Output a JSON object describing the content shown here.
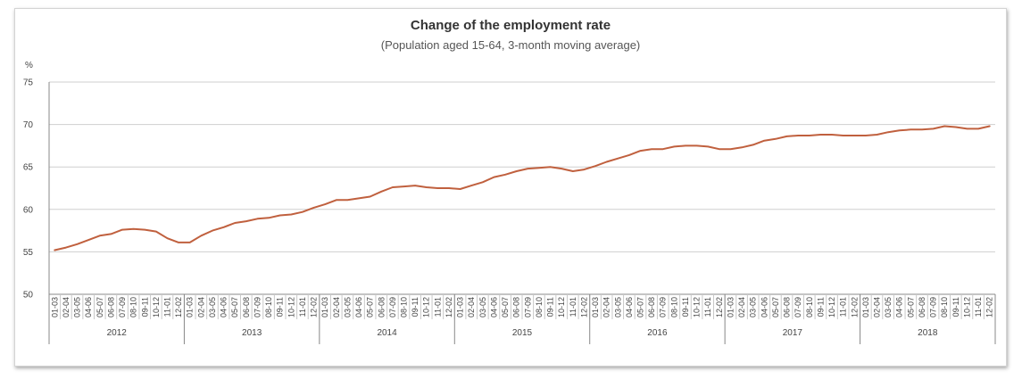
{
  "chart_data": {
    "type": "line",
    "title": "Change of the employment rate",
    "subtitle": "(Population aged 15-64, 3-month moving average)",
    "ylabel": "%",
    "ylim": [
      50,
      75
    ],
    "yticks": [
      50,
      55,
      60,
      65,
      70,
      75
    ],
    "grid": true,
    "legend": "none",
    "line_color": "#c0603e",
    "month_labels": [
      "01-03",
      "02-04",
      "03-05",
      "04-06",
      "05-07",
      "06-08",
      "07-09",
      "08-10",
      "09-11",
      "10-12",
      "11-01",
      "12-02"
    ],
    "years": [
      "2012",
      "2013",
      "2014",
      "2015",
      "2016",
      "2017",
      "2018"
    ],
    "series": [
      {
        "values": [
          55.2,
          55.5,
          55.9,
          56.4,
          56.9,
          57.1,
          57.6,
          57.7,
          57.6,
          57.4,
          56.6,
          56.1,
          56.1,
          56.9,
          57.5,
          57.9,
          58.4,
          58.6,
          58.9,
          59.0,
          59.3,
          59.4,
          59.7,
          60.2,
          60.6,
          61.1,
          61.1,
          61.3,
          61.5,
          62.1,
          62.6,
          62.7,
          62.8,
          62.6,
          62.5,
          62.5,
          62.4,
          62.8,
          63.2,
          63.8,
          64.1,
          64.5,
          64.8,
          64.9,
          65.0,
          64.8,
          64.5,
          64.7,
          65.1,
          65.6,
          66.0,
          66.4,
          66.9,
          67.1,
          67.1,
          67.4,
          67.5,
          67.5,
          67.4,
          67.1,
          67.1,
          67.3,
          67.6,
          68.1,
          68.3,
          68.6,
          68.7,
          68.7,
          68.8,
          68.8,
          68.7,
          68.7,
          68.7,
          68.8,
          69.1,
          69.3,
          69.4,
          69.4,
          69.5,
          69.8,
          69.7,
          69.5,
          69.5,
          69.8
        ]
      }
    ]
  }
}
